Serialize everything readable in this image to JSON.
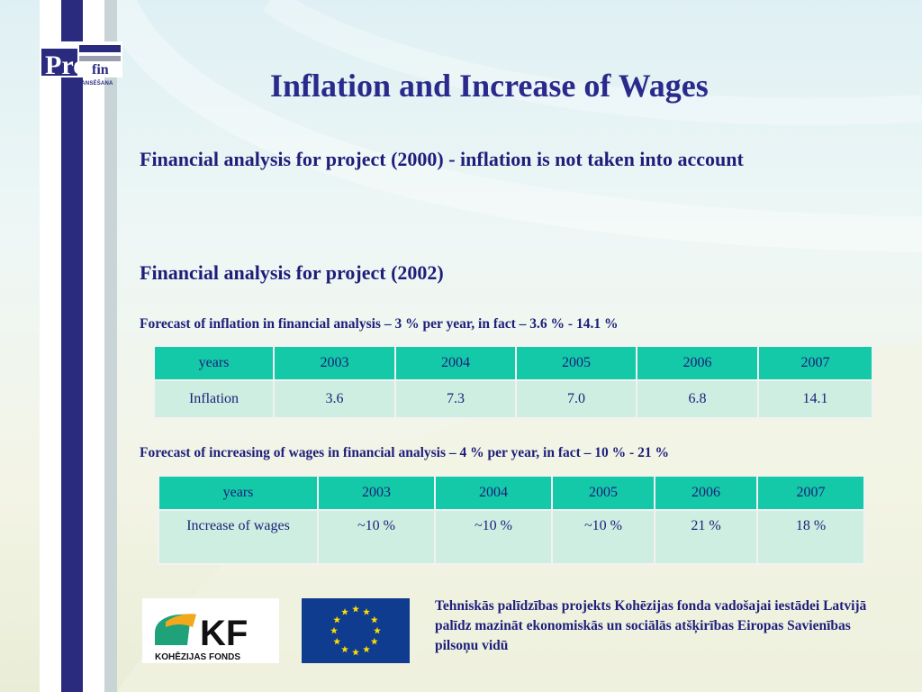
{
  "logo": {
    "text_top": "Pro",
    "text_fin": "fin",
    "subtitle": "FINANSĒŠANA"
  },
  "title": "Inflation and Increase of Wages",
  "heading1": "Financial analysis for project (2000) - inflation is not taken into account",
  "heading2": "Financial analysis for project (2002)",
  "inflation_note": "Forecast of inflation in financial analysis – 3 % per year, in fact – 3.6 % - 14.1 %",
  "inflation_table": {
    "header": [
      "years",
      "2003",
      "2004",
      "2005",
      "2006",
      "2007"
    ],
    "row": [
      "Inflation",
      "3.6",
      "7.3",
      "7.0",
      "6.8",
      "14.1"
    ]
  },
  "wages_note": "Forecast of increasing of wages in financial analysis – 4 % per year,  in fact  – 10 % - 21 %",
  "wages_table": {
    "header": [
      "years",
      "2003",
      "2004",
      "2005",
      "2006",
      "2007"
    ],
    "row": [
      "Increase of wages",
      "~10 %",
      "~10 %",
      "~10 %",
      "21 %",
      "18 %"
    ]
  },
  "kf_logo": {
    "letters": "KF",
    "caption": "KOHĒZIJAS FONDS"
  },
  "footer_text": "Tehniskās palīdzības projekts Kohēzijas fonda vadošajai iestādei Latvijā palīdz mazināt ekonomiskās un sociālās atšķirības Eiropas Savienības pilsoņu vidū",
  "colors": {
    "title": "#2a2a8c",
    "text": "#1e1e7a",
    "table_header": "#13c9a8",
    "table_row": "#cdeee0",
    "eu_blue": "#0f3c8e",
    "eu_star": "#ffdd00"
  },
  "icons": [
    "eu-flag-icon",
    "kf-leaf-icon"
  ]
}
